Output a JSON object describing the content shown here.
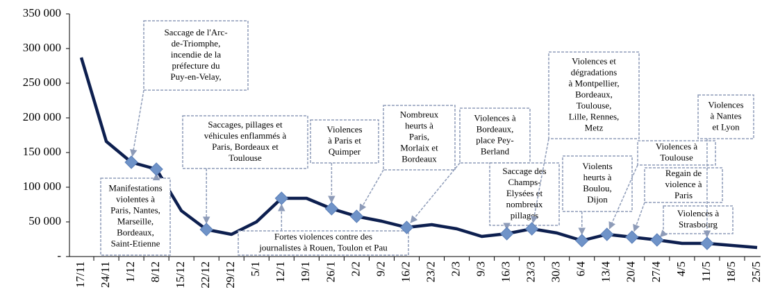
{
  "chart_data": {
    "type": "line",
    "categories": [
      "17/11",
      "24/11",
      "1/12",
      "8/12",
      "15/12",
      "22/12",
      "29/12",
      "5/1",
      "12/1",
      "19/1",
      "26/1",
      "2/2",
      "9/2",
      "16/2",
      "23/2",
      "2/3",
      "9/3",
      "16/3",
      "23/3",
      "30/3",
      "6/4",
      "13/4",
      "20/4",
      "27/4",
      "4/5",
      "11/5",
      "18/5",
      "25/5"
    ],
    "series": [
      {
        "color": "#0d1f4f",
        "marker_color": "#6f93c8",
        "values": [
          287000,
          166000,
          136000,
          126000,
          66000,
          39000,
          32000,
          50000,
          84000,
          84000,
          69000,
          58000,
          51000,
          42000,
          46000,
          40000,
          29000,
          33000,
          40000,
          34000,
          23000,
          32000,
          28000,
          24000,
          19000,
          19000,
          16000,
          13000
        ]
      }
    ],
    "ylim": [
      0,
      350000
    ],
    "yticks": [
      {
        "value": 0,
        "label": "-"
      },
      {
        "value": 50000,
        "label": "50 000"
      },
      {
        "value": 100000,
        "label": "100 000"
      },
      {
        "value": 150000,
        "label": "150 000"
      },
      {
        "value": 200000,
        "label": "200 000"
      },
      {
        "value": 250000,
        "label": "250 000"
      },
      {
        "value": 300000,
        "label": "300 000"
      },
      {
        "value": 350000,
        "label": "350 000"
      }
    ],
    "annotations": [
      {
        "x": "1/12",
        "lines": [
          "Saccage de l'Arc-",
          "de-Triomphe,",
          "incendie de la",
          "préfecture du",
          "Puy-en-Velay,"
        ]
      },
      {
        "x": "8/12",
        "lines": [
          "Manifestations",
          "violentes à",
          "Paris, Nantes,",
          "Marseille,",
          "Bordeaux,",
          "Saint-Etienne"
        ]
      },
      {
        "x": "22/12",
        "lines": [
          "Saccages, pillages et",
          "véhicules enflammés à",
          "Paris, Bordeaux et",
          "Toulouse"
        ]
      },
      {
        "x": "12/1",
        "lines": [
          "Fortes violences contre des",
          "journalistes à Rouen, Toulon et Pau"
        ]
      },
      {
        "x": "26/1",
        "lines": [
          "Violences",
          "à Paris et",
          "Quimper"
        ]
      },
      {
        "x": "2/2",
        "lines": [
          "Nombreux",
          "heurts à",
          "Paris,",
          "Morlaix et",
          "Bordeaux"
        ]
      },
      {
        "x": "16/2",
        "lines": [
          "Violences à",
          "Bordeaux,",
          "place Pey-",
          "Berland"
        ]
      },
      {
        "x": "16/3",
        "lines": [
          "Saccage des",
          "Champs-",
          "Elysées et",
          "nombreux",
          "pillages"
        ]
      },
      {
        "x": "23/3",
        "lines": [
          "Violences et",
          "dégradations",
          "à Montpellier,",
          "Bordeaux,",
          "Toulouse,",
          "Lille, Rennes,",
          "Metz"
        ]
      },
      {
        "x": "6/4",
        "lines": [
          "Violents",
          "heurts à",
          "Boulou,",
          "Dijon"
        ]
      },
      {
        "x": "13/4",
        "lines": [
          "Violences à",
          "Toulouse"
        ]
      },
      {
        "x": "20/4",
        "lines": [
          "Regain de",
          "violence à",
          "Paris"
        ]
      },
      {
        "x": "27/4",
        "lines": [
          "Violences à",
          "Strasbourg"
        ]
      },
      {
        "x": "11/5",
        "lines": [
          "Violences",
          "à Nantes",
          "et Lyon"
        ]
      }
    ]
  }
}
